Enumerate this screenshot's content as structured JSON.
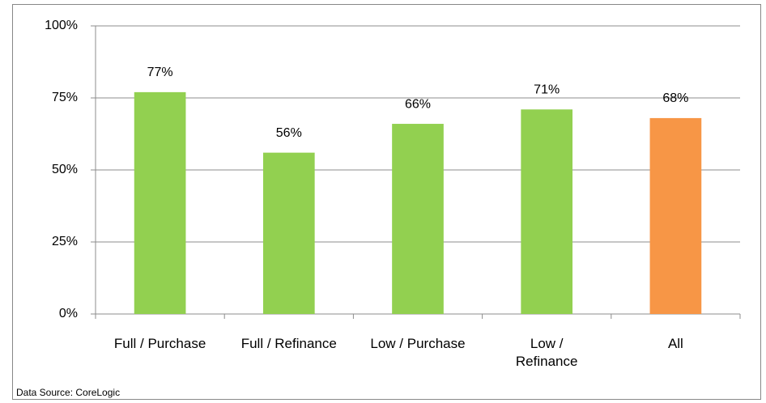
{
  "chart_data": {
    "type": "bar",
    "categories": [
      "Full / Purchase",
      "Full / Refinance",
      "Low / Purchase",
      "Low /\nRefinance",
      "All"
    ],
    "values": [
      77,
      56,
      66,
      71,
      68
    ],
    "value_labels": [
      "77%",
      "56%",
      "66%",
      "71%",
      "68%"
    ],
    "colors": [
      "#92d050",
      "#92d050",
      "#92d050",
      "#92d050",
      "#f79646"
    ],
    "ylim": [
      0,
      100
    ],
    "yticks": [
      {
        "value": 0,
        "label": "0%"
      },
      {
        "value": 25,
        "label": "25%"
      },
      {
        "value": 50,
        "label": "50%"
      },
      {
        "value": 75,
        "label": "75%"
      },
      {
        "value": 100,
        "label": "100%"
      }
    ],
    "grid": true,
    "source": "Data Source: CoreLogic"
  }
}
